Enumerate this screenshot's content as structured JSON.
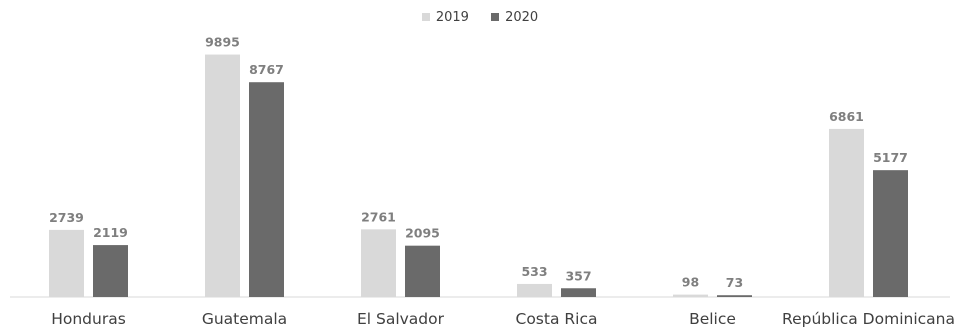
{
  "chart_data": {
    "type": "bar",
    "categories": [
      "Honduras",
      "Guatemala",
      "El Salvador",
      "Costa Rica",
      "Belice",
      "República Dominicana"
    ],
    "series": [
      {
        "name": "2019",
        "color": "#d9d9d9",
        "values": [
          2739,
          9895,
          2761,
          533,
          98,
          6861
        ]
      },
      {
        "name": "2020",
        "color": "#6a6a6a",
        "values": [
          2119,
          8767,
          2095,
          357,
          73,
          5177
        ]
      }
    ],
    "ylim": [
      0,
      10000
    ],
    "legend_position": "top-center",
    "grid": false,
    "data_labels": true
  }
}
